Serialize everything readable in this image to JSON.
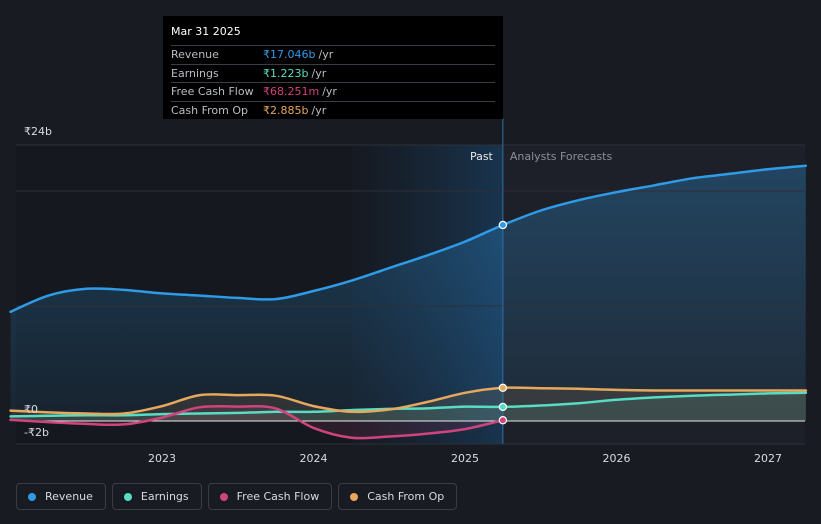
{
  "tooltip": {
    "date": "Mar 31 2025",
    "rows": [
      {
        "label": "Revenue",
        "value": "₹17.046b",
        "unit": "/yr",
        "color": "#2f9be7"
      },
      {
        "label": "Earnings",
        "value": "₹1.223b",
        "unit": "/yr",
        "color": "#58dcc4"
      },
      {
        "label": "Free Cash Flow",
        "value": "₹68.251m",
        "unit": "/yr",
        "color": "#d0447d"
      },
      {
        "label": "Cash From Op",
        "value": "₹2.885b",
        "unit": "/yr",
        "color": "#e6a85c"
      }
    ]
  },
  "chart_data": {
    "type": "line",
    "title": "",
    "xlabel": "",
    "ylabel": "",
    "ylim": [
      -2,
      24
    ],
    "y_tick_labels": [
      {
        "value": 24,
        "label": "₹24b"
      },
      {
        "value": 0,
        "label": "₹0"
      },
      {
        "value": -2,
        "label": "-₹2b"
      }
    ],
    "x_ticks": [
      {
        "value": 2023.0,
        "label": "2023"
      },
      {
        "value": 2024.0,
        "label": "2024"
      },
      {
        "value": 2025.0,
        "label": "2025"
      },
      {
        "value": 2026.0,
        "label": "2026"
      },
      {
        "value": 2027.0,
        "label": "2027"
      }
    ],
    "xlim": [
      2021.78,
      2027.25
    ],
    "past_label": "Past",
    "forecast_label": "Analysts Forecasts",
    "divider_x": 2025.25,
    "forecast_shade_start": 2024.25,
    "series": [
      {
        "name": "Revenue",
        "color": "#2f9be7",
        "points": [
          [
            2022.0,
            9.5
          ],
          [
            2022.25,
            10.9
          ],
          [
            2022.5,
            11.5
          ],
          [
            2022.75,
            11.4
          ],
          [
            2023.0,
            11.1
          ],
          [
            2023.25,
            10.9
          ],
          [
            2023.5,
            10.7
          ],
          [
            2023.75,
            10.6
          ],
          [
            2024.0,
            11.3
          ],
          [
            2024.25,
            12.2
          ],
          [
            2024.5,
            13.3
          ],
          [
            2024.75,
            14.4
          ],
          [
            2025.0,
            15.6
          ],
          [
            2025.25,
            17.046
          ],
          [
            2025.5,
            18.3
          ],
          [
            2025.75,
            19.2
          ],
          [
            2026.0,
            19.9
          ],
          [
            2026.25,
            20.5
          ],
          [
            2026.5,
            21.1
          ],
          [
            2026.75,
            21.5
          ],
          [
            2027.0,
            21.9
          ],
          [
            2027.25,
            22.2
          ]
        ]
      },
      {
        "name": "Earnings",
        "color": "#58dcc4",
        "points": [
          [
            2022.0,
            0.4
          ],
          [
            2022.25,
            0.45
          ],
          [
            2022.5,
            0.5
          ],
          [
            2022.75,
            0.5
          ],
          [
            2023.0,
            0.6
          ],
          [
            2023.25,
            0.65
          ],
          [
            2023.5,
            0.7
          ],
          [
            2023.75,
            0.8
          ],
          [
            2024.0,
            0.8
          ],
          [
            2024.25,
            0.95
          ],
          [
            2024.5,
            1.05
          ],
          [
            2024.75,
            1.1
          ],
          [
            2025.0,
            1.25
          ],
          [
            2025.25,
            1.223
          ],
          [
            2025.5,
            1.35
          ],
          [
            2025.75,
            1.55
          ],
          [
            2026.0,
            1.85
          ],
          [
            2026.25,
            2.05
          ],
          [
            2026.5,
            2.2
          ],
          [
            2026.75,
            2.3
          ],
          [
            2027.0,
            2.4
          ],
          [
            2027.25,
            2.45
          ]
        ]
      },
      {
        "name": "Free Cash Flow",
        "color": "#d0447d",
        "points": [
          [
            2022.0,
            0.1
          ],
          [
            2022.25,
            -0.1
          ],
          [
            2022.5,
            -0.25
          ],
          [
            2022.75,
            -0.3
          ],
          [
            2023.0,
            0.3
          ],
          [
            2023.25,
            1.2
          ],
          [
            2023.5,
            1.25
          ],
          [
            2023.75,
            1.1
          ],
          [
            2024.0,
            -0.6
          ],
          [
            2024.25,
            -1.45
          ],
          [
            2024.5,
            -1.35
          ],
          [
            2024.75,
            -1.1
          ],
          [
            2025.0,
            -0.7
          ],
          [
            2025.25,
            0.068
          ]
        ]
      },
      {
        "name": "Cash From Op",
        "color": "#e6a85c",
        "points": [
          [
            2022.0,
            0.9
          ],
          [
            2022.25,
            0.75
          ],
          [
            2022.5,
            0.65
          ],
          [
            2022.75,
            0.65
          ],
          [
            2023.0,
            1.3
          ],
          [
            2023.25,
            2.25
          ],
          [
            2023.5,
            2.25
          ],
          [
            2023.75,
            2.2
          ],
          [
            2024.0,
            1.3
          ],
          [
            2024.25,
            0.8
          ],
          [
            2024.5,
            1.0
          ],
          [
            2024.75,
            1.65
          ],
          [
            2025.0,
            2.45
          ],
          [
            2025.25,
            2.885
          ],
          [
            2025.5,
            2.85
          ],
          [
            2025.75,
            2.8
          ],
          [
            2026.0,
            2.7
          ],
          [
            2026.25,
            2.65
          ],
          [
            2026.5,
            2.65
          ],
          [
            2026.75,
            2.65
          ],
          [
            2027.0,
            2.65
          ],
          [
            2027.25,
            2.65
          ]
        ]
      }
    ],
    "highlight_points": [
      {
        "series": "Revenue",
        "x": 2025.25,
        "y": 17.046
      },
      {
        "series": "Earnings",
        "x": 2025.25,
        "y": 1.223
      },
      {
        "series": "Free Cash Flow",
        "x": 2025.25,
        "y": 0.068
      },
      {
        "series": "Cash From Op",
        "x": 2025.25,
        "y": 2.885
      }
    ]
  },
  "legend": [
    {
      "label": "Revenue",
      "color": "#2f9be7"
    },
    {
      "label": "Earnings",
      "color": "#58dcc4"
    },
    {
      "label": "Free Cash Flow",
      "color": "#d0447d"
    },
    {
      "label": "Cash From Op",
      "color": "#e6a85c"
    }
  ]
}
